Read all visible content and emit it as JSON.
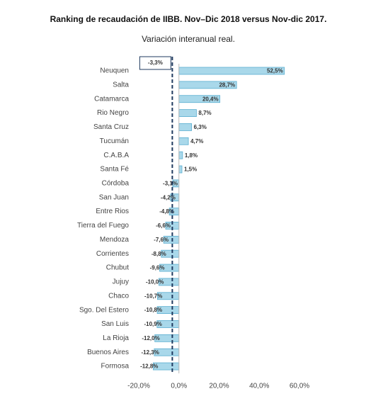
{
  "chart_data": {
    "type": "bar",
    "orientation": "horizontal",
    "title": "Ranking de recaudación de IIBB. Nov–Dic 2018 versus Nov-dic 2017.",
    "subtitle": "Variación interanual real.",
    "categories": [
      "Neuquen",
      "Salta",
      "Catamarca",
      "Rio Negro",
      "Santa Cruz",
      "Tucumán",
      "C.A.B.A",
      "Santa Fé",
      "Córdoba",
      "San Juan",
      "Entre Rios",
      "Tierra del Fuego",
      "Mendoza",
      "Corrientes",
      "Chubut",
      "Jujuy",
      "Chaco",
      "Sgo. Del Estero",
      "San Luis",
      "La Rioja",
      "Buenos Aires",
      "Formosa"
    ],
    "values": [
      52.5,
      28.7,
      20.4,
      8.7,
      6.3,
      4.7,
      1.8,
      1.5,
      -3.1,
      -4.2,
      -4.8,
      -6.6,
      -7.6,
      -8.8,
      -9.6,
      -10.0,
      -10.7,
      -10.8,
      -10.9,
      -12.0,
      -12.3,
      -12.8
    ],
    "value_labels": [
      "52,5%",
      "28,7%",
      "20,4%",
      "8,7%",
      "6,3%",
      "4,7%",
      "1,8%",
      "1,5%",
      "-3,1%",
      "-4,2%",
      "-4,8%",
      "-6,6%",
      "-7,6%",
      "-8,8%",
      "-9,6%",
      "-10,0%",
      "-10,7%",
      "-10,8%",
      "-10,9%",
      "-12,0%",
      "-12,3%",
      "-12,8%"
    ],
    "color": "#a9d8ea",
    "reference_line": {
      "value": -3.3,
      "label": "-3,3%"
    },
    "xlim": [
      -20,
      60
    ],
    "xticks": [
      {
        "value": -20,
        "label": "-20,0%"
      },
      {
        "value": 0,
        "label": "0,0%"
      },
      {
        "value": 20,
        "label": "20,0%"
      },
      {
        "value": 40,
        "label": "40,0%"
      },
      {
        "value": 60,
        "label": "60,0%"
      }
    ]
  }
}
